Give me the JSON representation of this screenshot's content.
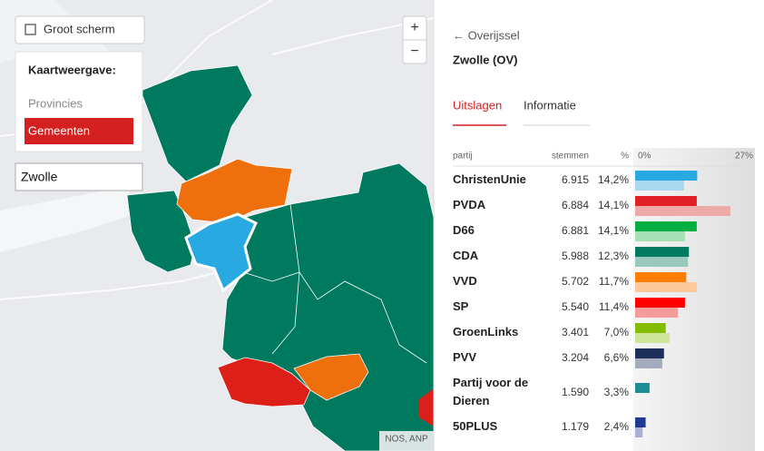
{
  "map": {
    "fullscreen_button": "Groot scherm",
    "zoom_in": "+",
    "zoom_out": "−",
    "view_title": "Kaartweergave:",
    "view_options": [
      "Provincies",
      "Gemeenten"
    ],
    "search_value": "Zwolle",
    "credit": "NOS, ANP"
  },
  "panel": {
    "back_link": "← Overijssel",
    "title": "Zwolle (OV)",
    "tabs": [
      "Uitslagen",
      "Informatie"
    ],
    "table": {
      "columns": [
        "partij",
        "stemmen",
        "%"
      ],
      "scale": {
        "min": {
          "value": 0,
          "label": "0%"
        },
        "max": {
          "value": 27,
          "label": "27%"
        }
      },
      "rows": [
        {
          "party": "ChristenUnie",
          "votes": "6.915",
          "pct": 14.2,
          "pct_label": "14,2%",
          "previous": 11.2,
          "color": "#29a9e1",
          "previous_color": "#a8d9ee"
        },
        {
          "party": "PVDA",
          "votes": "6.884",
          "pct": 14.1,
          "pct_label": "14,1%",
          "previous": 21.8,
          "color": "#e01f26",
          "previous_color": "#eea9a9"
        },
        {
          "party": "D66",
          "votes": "6.881",
          "pct": 14.1,
          "pct_label": "14,1%",
          "previous": 11.4,
          "color": "#00ae41",
          "previous_color": "#a6e0b5"
        },
        {
          "party": "CDA",
          "votes": "5.988",
          "pct": 12.3,
          "pct_label": "12,3%",
          "previous": 12.1,
          "color": "#007a5e",
          "previous_color": "#99c9bd"
        },
        {
          "party": "VVD",
          "votes": "5.702",
          "pct": 11.7,
          "pct_label": "11,7%",
          "previous": 14.1,
          "color": "#ff7f00",
          "previous_color": "#fdc89b"
        },
        {
          "party": "SP",
          "votes": "5.540",
          "pct": 11.4,
          "pct_label": "11,4%",
          "previous": 9.8,
          "color": "#ff0000",
          "previous_color": "#f49c9c"
        },
        {
          "party": "GroenLinks",
          "votes": "3.401",
          "pct": 7.0,
          "pct_label": "7,0%",
          "previous": 7.9,
          "color": "#84bd00",
          "previous_color": "#cfe59a"
        },
        {
          "party": "PVV",
          "votes": "3.204",
          "pct": 6.6,
          "pct_label": "6,6%",
          "previous": 6.2,
          "color": "#1c2f5b",
          "previous_color": "#a4abbd"
        },
        {
          "party": "Partij voor de Dieren",
          "votes": "1.590",
          "pct": 3.3,
          "pct_label": "3,3%",
          "color": "#1d8d94"
        },
        {
          "party": "50PLUS",
          "votes": "1.179",
          "pct": 2.4,
          "pct_label": "2,4%",
          "previous": 1.7,
          "color": "#1f3a93",
          "previous_color": "#a5b0d3"
        }
      ]
    }
  }
}
